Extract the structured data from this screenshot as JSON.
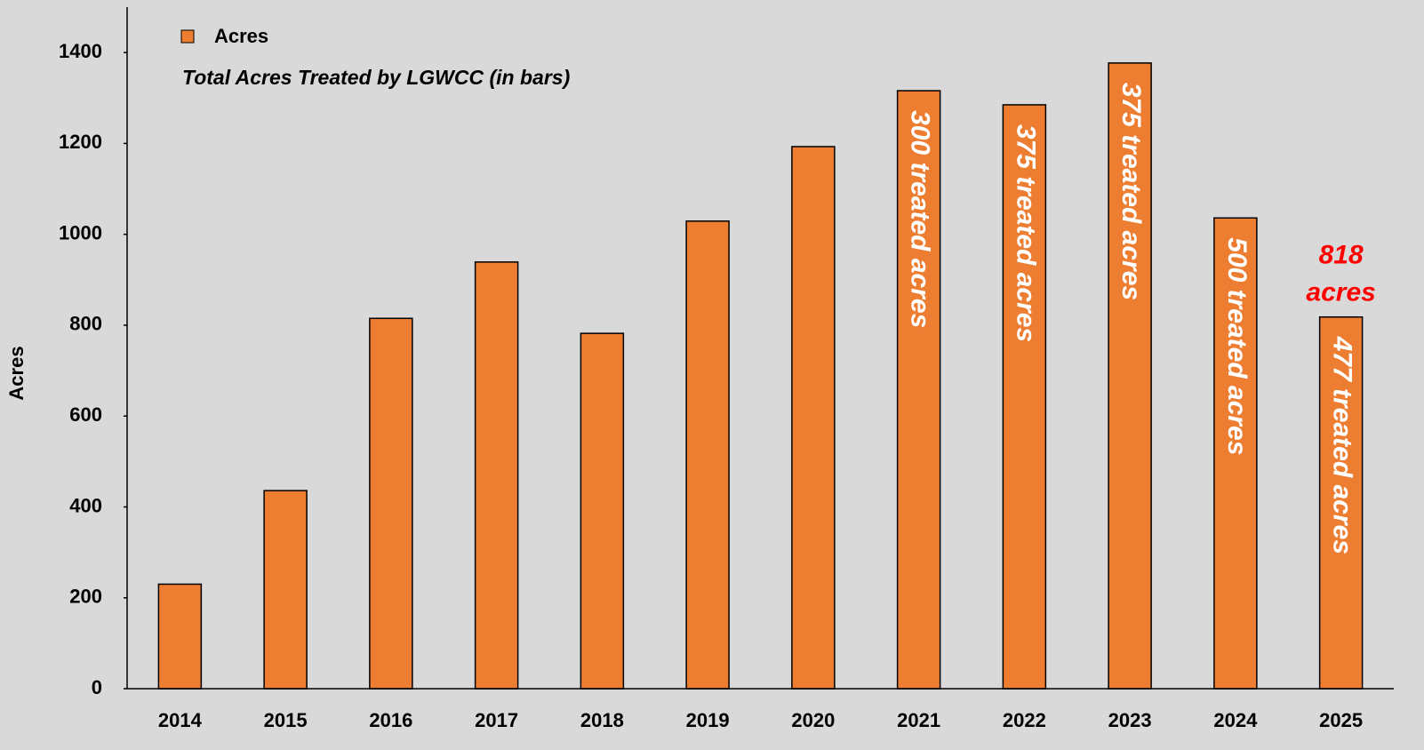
{
  "chart_data": {
    "type": "bar",
    "subtitle": "Total Acres Treated by LGWCC (in bars)",
    "ylabel": "Acres",
    "categories": [
      "2014",
      "2015",
      "2016",
      "2017",
      "2018",
      "2019",
      "2020",
      "2021",
      "2022",
      "2023",
      "2024",
      "2025"
    ],
    "series": [
      {
        "name": "Acres",
        "color": "#ed7d31",
        "values": [
          230,
          436,
          815,
          939,
          782,
          1029,
          1193,
          1316,
          1285,
          1377,
          1036,
          818
        ],
        "value_labels": [
          null,
          null,
          null,
          null,
          null,
          null,
          null,
          null,
          null,
          null,
          null,
          "818 acres"
        ]
      }
    ],
    "bar_labels": [
      null,
      null,
      null,
      null,
      null,
      null,
      null,
      "300 treated acres",
      "375 treated acres",
      "375 treated acres",
      "500 treated acres",
      "477 treated acres"
    ],
    "ylim": [
      0,
      1500
    ],
    "yticks": [
      0,
      200,
      400,
      600,
      800,
      1000,
      1200,
      1400
    ],
    "grid": false,
    "legend": "upper left"
  }
}
